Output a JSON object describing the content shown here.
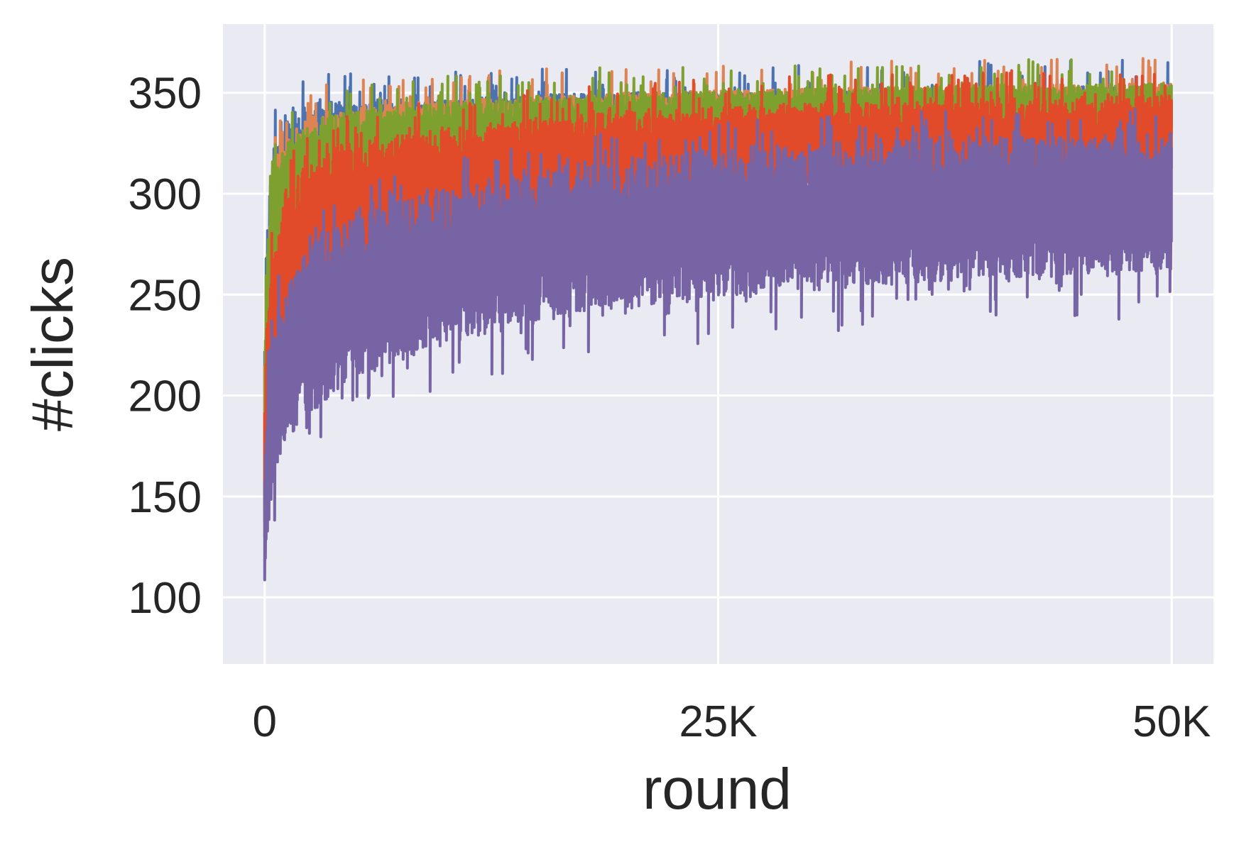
{
  "chart_data": {
    "type": "line",
    "title": "",
    "xlabel": "round",
    "ylabel": "#clicks",
    "xlim": [
      -2300,
      52300
    ],
    "ylim": [
      67,
      384
    ],
    "xticks": [
      {
        "value": 0,
        "label": "0"
      },
      {
        "value": 25000,
        "label": "25K"
      },
      {
        "value": 50000,
        "label": "50K"
      }
    ],
    "yticks": [
      {
        "value": 100,
        "label": "100"
      },
      {
        "value": 150,
        "label": "150"
      },
      {
        "value": 200,
        "label": "200"
      },
      {
        "value": 250,
        "label": "250"
      },
      {
        "value": 300,
        "label": "300"
      },
      {
        "value": 350,
        "label": "350"
      }
    ],
    "grid": true,
    "legend": "none",
    "plot_background": "#EAEAF2",
    "grid_color": "#FFFFFF",
    "series": [
      {
        "color": "#4C72B0",
        "x": [
          0,
          100,
          300,
          600,
          1000,
          2000,
          3000,
          5000,
          7500,
          10000,
          15000,
          20000,
          25000,
          30000,
          35000,
          40000,
          45000,
          50000
        ],
        "upper": [
          230,
          285,
          315,
          330,
          340,
          342,
          345,
          346,
          347,
          347,
          349,
          350,
          350,
          351,
          351,
          352,
          353,
          353
        ],
        "lower": [
          120,
          205,
          240,
          265,
          280,
          292,
          300,
          305,
          310,
          313,
          318,
          321,
          324,
          326,
          327,
          328,
          329,
          330
        ]
      },
      {
        "color": "#DD8452",
        "x": [
          0,
          100,
          300,
          600,
          1000,
          2000,
          3000,
          5000,
          7500,
          10000,
          15000,
          20000,
          25000,
          30000,
          35000,
          40000,
          45000,
          50000
        ],
        "upper": [
          215,
          270,
          300,
          318,
          328,
          336,
          340,
          343,
          345,
          346,
          348,
          350,
          351,
          352,
          353,
          354,
          354,
          355
        ],
        "lower": [
          115,
          190,
          225,
          250,
          268,
          282,
          290,
          298,
          304,
          308,
          314,
          318,
          322,
          325,
          327,
          328,
          329,
          330
        ]
      },
      {
        "color": "#7EA02E",
        "x": [
          0,
          100,
          300,
          600,
          1000,
          2000,
          3000,
          5000,
          7500,
          10000,
          15000,
          20000,
          25000,
          30000,
          35000,
          40000,
          45000,
          50000
        ],
        "upper": [
          210,
          262,
          295,
          312,
          322,
          332,
          337,
          341,
          344,
          345,
          348,
          350,
          351,
          352,
          353,
          354,
          354,
          355
        ],
        "lower": [
          110,
          185,
          220,
          245,
          262,
          278,
          287,
          295,
          301,
          306,
          312,
          317,
          321,
          324,
          326,
          327,
          328,
          329
        ]
      },
      {
        "color": "#E24B2A",
        "x": [
          0,
          100,
          300,
          600,
          1000,
          2000,
          3000,
          5000,
          7500,
          10000,
          15000,
          20000,
          25000,
          30000,
          35000,
          40000,
          45000,
          50000
        ],
        "upper": [
          190,
          232,
          262,
          285,
          300,
          313,
          320,
          326,
          330,
          333,
          338,
          341,
          343,
          345,
          346,
          347,
          348,
          349
        ],
        "lower": [
          105,
          165,
          190,
          208,
          222,
          238,
          250,
          262,
          270,
          276,
          285,
          291,
          296,
          299,
          301,
          302,
          303,
          304
        ]
      },
      {
        "color": "#7764A5",
        "x": [
          0,
          100,
          300,
          600,
          1000,
          2000,
          3000,
          5000,
          7500,
          10000,
          15000,
          20000,
          25000,
          30000,
          35000,
          40000,
          45000,
          50000
        ],
        "upper": [
          170,
          200,
          225,
          240,
          252,
          268,
          278,
          289,
          297,
          303,
          312,
          318,
          322,
          325,
          327,
          328,
          329,
          330
        ],
        "lower": [
          82,
          125,
          145,
          160,
          170,
          185,
          195,
          208,
          218,
          225,
          236,
          243,
          248,
          252,
          255,
          257,
          259,
          260
        ]
      }
    ]
  }
}
